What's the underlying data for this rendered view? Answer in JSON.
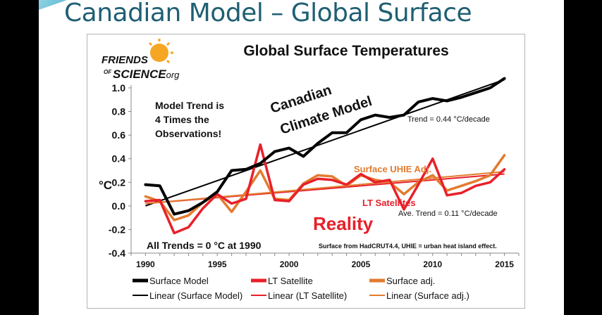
{
  "slide": {
    "title": "Canadian Model – Global Surface"
  },
  "logo": {
    "line1": "FRIENDS",
    "line2": "OF",
    "line3": "SCIENCE",
    "line4": ".org",
    "sun_color": "#f5a623"
  },
  "colors": {
    "model": "#000000",
    "satellite": "#e8202a",
    "surface_adj": "#e37b2e",
    "reality_text": "#e8202a"
  },
  "chart_data": {
    "type": "line",
    "title": "Global Surface Temperatures",
    "xlabel": "",
    "ylabel": "°C",
    "xlim": [
      1989,
      2016
    ],
    "ylim": [
      -0.4,
      1.0
    ],
    "x_ticks": [
      "1990",
      "1995",
      "2000",
      "2005",
      "2010",
      "2015"
    ],
    "y_ticks": [
      "1.0",
      "0.8",
      "0.6",
      "0.4",
      "0.2",
      "0.0",
      "-0.2",
      "-0.4"
    ],
    "x": [
      1990,
      1991,
      1992,
      1993,
      1994,
      1995,
      1996,
      1997,
      1998,
      1999,
      2000,
      2001,
      2002,
      2003,
      2004,
      2005,
      2006,
      2007,
      2008,
      2009,
      2010,
      2011,
      2012,
      2013,
      2014,
      2015
    ],
    "series": [
      {
        "name": "Surface Model",
        "key": "model",
        "values": [
          0.18,
          0.17,
          -0.07,
          -0.04,
          0.03,
          0.12,
          0.3,
          0.31,
          0.36,
          0.46,
          0.49,
          0.42,
          0.53,
          0.62,
          0.62,
          0.73,
          0.77,
          0.75,
          0.77,
          0.88,
          0.91,
          0.89,
          0.92,
          0.96,
          1.0,
          1.08
        ]
      },
      {
        "name": "LT Satellite",
        "key": "satellite",
        "values": [
          0.04,
          0.05,
          -0.23,
          -0.18,
          -0.02,
          0.1,
          0.02,
          0.06,
          0.52,
          0.05,
          0.04,
          0.18,
          0.23,
          0.22,
          0.18,
          0.27,
          0.2,
          0.22,
          -0.03,
          0.18,
          0.4,
          0.09,
          0.11,
          0.17,
          0.2,
          0.31
        ]
      },
      {
        "name": "Surface adj.",
        "key": "surface_adj",
        "values": [
          0.08,
          0.04,
          -0.12,
          -0.08,
          0.03,
          0.1,
          -0.05,
          0.12,
          0.3,
          0.06,
          0.05,
          0.19,
          0.26,
          0.25,
          0.17,
          0.26,
          0.22,
          0.2,
          0.1,
          0.2,
          0.26,
          0.13,
          0.17,
          0.21,
          0.26,
          0.43
        ]
      }
    ],
    "trend_lines": [
      {
        "name": "Linear (Surface Model)",
        "key": "model",
        "x": [
          1990,
          2015
        ],
        "y": [
          0.0,
          1.07
        ]
      },
      {
        "name": "Linear (LT Satellite)",
        "key": "satellite",
        "x": [
          1990,
          2015
        ],
        "y": [
          0.02,
          0.27
        ]
      },
      {
        "name": "Linear (Surface adj.)",
        "key": "surface_adj",
        "x": [
          1990,
          2015
        ],
        "y": [
          0.02,
          0.29
        ]
      }
    ],
    "annotations": {
      "model_trend_1": "Model  Trend is",
      "model_trend_2": "4 Times the",
      "model_trend_3": "Observations!",
      "canadian": "Canadian",
      "climate_model": "Climate Model",
      "trend_model": "Trend =  0.44 °C/decade",
      "surface_uhie": "Surface UHIE Adj.",
      "lt_satellites": "LT Satellites",
      "ave_trend": "Ave. Trend = 0.11 °C/decade",
      "reality": "Reality",
      "all_trends": "All Trends = 0 °C at 1990",
      "source": "Surface from HadCRUT4.4,  UHIE = urban heat island effect."
    },
    "legend": [
      {
        "label": "Surface Model",
        "key": "model",
        "width": "thick"
      },
      {
        "label": "LT Satellite",
        "key": "satellite",
        "width": "thick"
      },
      {
        "label": "Surface adj.",
        "key": "surface_adj",
        "width": "thick"
      },
      {
        "label": "Linear (Surface Model)",
        "key": "model",
        "width": "thin"
      },
      {
        "label": "Linear (LT Satellite)",
        "key": "satellite",
        "width": "thin"
      },
      {
        "label": "Linear (Surface adj.)",
        "key": "surface_adj",
        "width": "thin"
      }
    ],
    "legend_position": "bottom",
    "grid": false
  }
}
